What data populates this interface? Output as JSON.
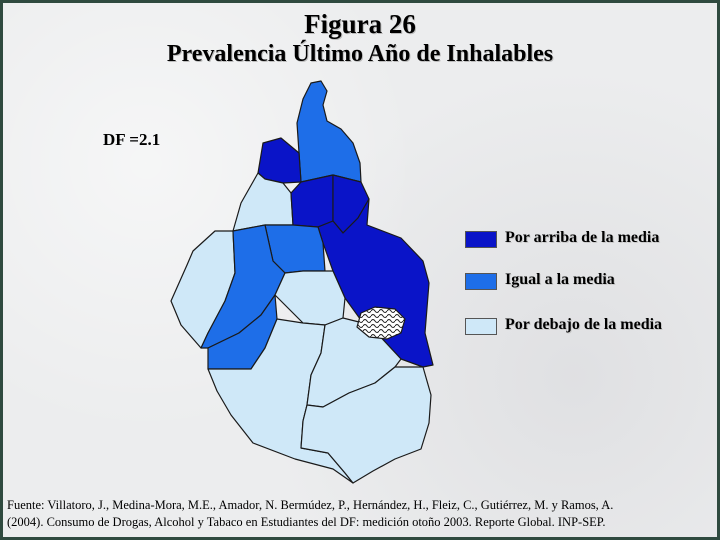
{
  "title": "Figura 26",
  "subtitle": "Prevalencia Último Año de Inhalables",
  "df_value": "DF =2.1",
  "colors": {
    "above": "#0a14c8",
    "equal": "#1e6ee8",
    "below": "#cfe8f8",
    "border": "#1a1a1a"
  },
  "legend": [
    {
      "label": "Por arriba de la media",
      "color": "#0a14c8"
    },
    {
      "label": "Igual a la media",
      "color": "#1e6ee8"
    },
    {
      "label": "Por debajo de la media",
      "color": "#cfe8f8"
    }
  ],
  "source_line1": "Fuente: Villatoro, J., Medina-Mora, M.E., Amador, N. Bermúdez, P., Hernández, H., Fleiz, C., Gutiérrez, M. y Ramos, A.",
  "source_line2": "(2004). Consumo de Drogas, Alcohol y Tabaco en Estudiantes del DF: medición otoño 2003. Reporte Global. INP-SEP."
}
